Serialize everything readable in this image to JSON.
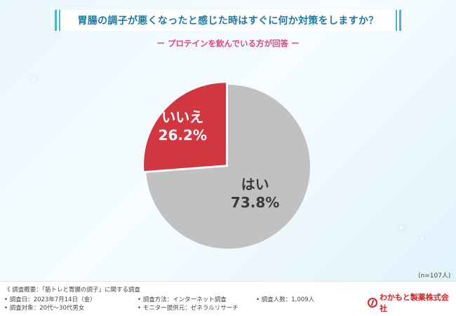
{
  "header": {
    "title": "胃腸の調子が悪くなったと感じた時はすぐに何か対策をしますか？",
    "subtitle": "ー プロテインを飲んでいる方が回答 ー"
  },
  "chart_data": {
    "type": "pie",
    "slices": [
      {
        "label": "はい",
        "value": 73.8,
        "value_text": "73.8%",
        "color": "#c1c1c1",
        "label_color": "#3a3a3a"
      },
      {
        "label": "いいえ",
        "value": 26.2,
        "value_text": "26.2%",
        "color": "#d2363f",
        "label_color": "#ffffff"
      }
    ],
    "note": "(n=107人)"
  },
  "footer": {
    "summary": "《 調査概要：「筋トレと胃腸の調子」に関する調査",
    "date": "• 調査日：2023年7月14日（金）",
    "target": "• 調査対象：20代〜30代男女",
    "method": "• 調査方法：インターネット調査",
    "provider": "• モニター提供元：ゼネラルリサーチ",
    "count": "• 調査人数：1,009人",
    "logo": "わかもと製薬株式会社"
  }
}
